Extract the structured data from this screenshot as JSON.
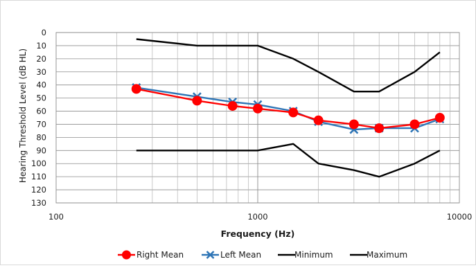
{
  "chart_data": {
    "type": "line",
    "xlabel": "Frequency (Hz)",
    "ylabel": "Hearing Threshold Level (dB HL)",
    "x_scale": "log",
    "xlim": [
      100,
      10000
    ],
    "ylim": [
      130,
      0
    ],
    "y_inverted": true,
    "grid": true,
    "legend_position": "bottom",
    "x_ticks": [
      {
        "value": 100,
        "label": "100"
      },
      {
        "value": 1000,
        "label": "1000"
      },
      {
        "value": 10000,
        "label": "10000"
      }
    ],
    "y_ticks": [
      0,
      10,
      20,
      30,
      40,
      50,
      60,
      70,
      80,
      90,
      100,
      110,
      120,
      130
    ],
    "series": [
      {
        "name": "Right Mean",
        "color": "#ff0000",
        "marker": "circle",
        "x": [
          250,
          500,
          750,
          1000,
          1500,
          2000,
          3000,
          4000,
          6000,
          8000
        ],
        "y": [
          43,
          52,
          56,
          58,
          61,
          67,
          70,
          73,
          70,
          65
        ]
      },
      {
        "name": "Left Mean",
        "color": "#2e75b6",
        "marker": "x",
        "x": [
          250,
          500,
          750,
          1000,
          1500,
          2000,
          3000,
          4000,
          6000,
          8000
        ],
        "y": [
          42,
          49,
          53,
          55,
          60,
          68,
          74,
          73,
          73,
          66
        ]
      },
      {
        "name": "Minimum",
        "color": "#000000",
        "marker": "none",
        "x": [
          250,
          500,
          750,
          1000,
          1500,
          2000,
          3000,
          4000,
          6000,
          8000
        ],
        "y": [
          5,
          10,
          10,
          10,
          20,
          30,
          45,
          45,
          30,
          15
        ]
      },
      {
        "name": "Maximum",
        "color": "#000000",
        "marker": "none",
        "x": [
          250,
          500,
          750,
          1000,
          1500,
          2000,
          3000,
          4000,
          6000,
          8000
        ],
        "y": [
          90,
          90,
          90,
          90,
          85,
          100,
          105,
          110,
          100,
          90
        ]
      }
    ]
  }
}
